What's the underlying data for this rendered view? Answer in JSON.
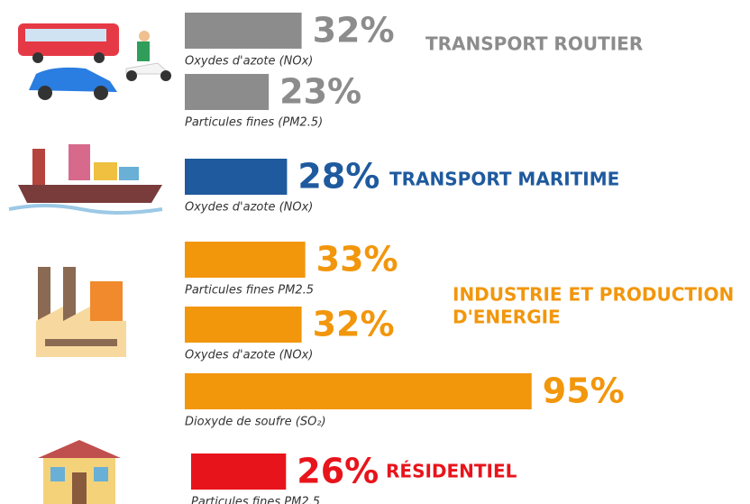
{
  "sectors": [
    {
      "name_lines": [
        "TRANSPORT ROUTIER"
      ],
      "color": "#8c8c8c",
      "items": [
        {
          "label": "Oxydes d'azote (NOx)",
          "value": 32,
          "value_label": "32%"
        },
        {
          "label": "Particules fines (PM2.5)",
          "value": 23,
          "value_label": "23%"
        }
      ]
    },
    {
      "name_lines": [
        "TRANSPORT MARITIME"
      ],
      "color": "#1f5a9e",
      "items": [
        {
          "label": "Oxydes d'azote (NOx)",
          "value": 28,
          "value_label": "28%"
        }
      ]
    },
    {
      "name_lines": [
        "INDUSTRIE ET PRODUCTION",
        "D'ENERGIE"
      ],
      "color": "#f2960c",
      "items": [
        {
          "label": "Particules fines PM2.5",
          "value": 33,
          "value_label": "33%"
        },
        {
          "label": "Oxydes d'azote (NOx)",
          "value": 32,
          "value_label": "32%"
        },
        {
          "label": "Dioxyde de soufre (SO₂)",
          "value": 95,
          "value_label": "95%"
        }
      ]
    },
    {
      "name_lines": [
        "RÉSIDENTIEL"
      ],
      "color": "#e8141b",
      "items": [
        {
          "label": "Particules fines PM2.5",
          "value": 26,
          "value_label": "26%"
        }
      ]
    }
  ]
}
